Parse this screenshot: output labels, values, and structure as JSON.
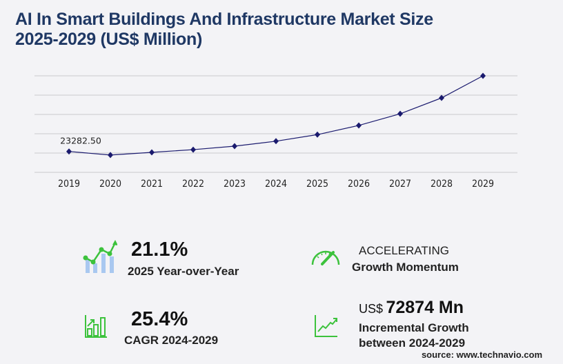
{
  "title_line1": "AI In Smart Buildings And Infrastructure Market Size",
  "title_line2": "2025-2029 (US$ Million)",
  "chart_data": {
    "type": "line",
    "title": "AI In Smart Buildings And Infrastructure Market Size 2025-2029 (US$ Million)",
    "categories": [
      "2019",
      "2020",
      "2021",
      "2022",
      "2023",
      "2024",
      "2025",
      "2026",
      "2027",
      "2028",
      "2029"
    ],
    "values": [
      23282.5,
      19300,
      22300,
      25300,
      29200,
      34735,
      42064,
      52300,
      65300,
      83000,
      107609
    ],
    "data_labels": [
      {
        "index": 0,
        "text": "23282.50"
      }
    ],
    "ylim": [
      0,
      107609
    ],
    "grid": true,
    "line_color": "#1a1a6e"
  },
  "stats": {
    "yoy_value": "21.1%",
    "yoy_label": "2025 Year-over-Year",
    "momentum_value": "ACCELERATING",
    "momentum_label": "Growth Momentum",
    "cagr_value": "25.4%",
    "cagr_label": "CAGR 2024-2029",
    "incr_prefix": "US$",
    "incr_value": "72874 Mn",
    "incr_label1": "Incremental Growth",
    "incr_label2": "between 2024-2029"
  },
  "colors": {
    "accent_green": "#3cc23c",
    "bar_blue": "#a9c8f0",
    "title": "#1f3864"
  },
  "source": "source: www.technavio.com"
}
